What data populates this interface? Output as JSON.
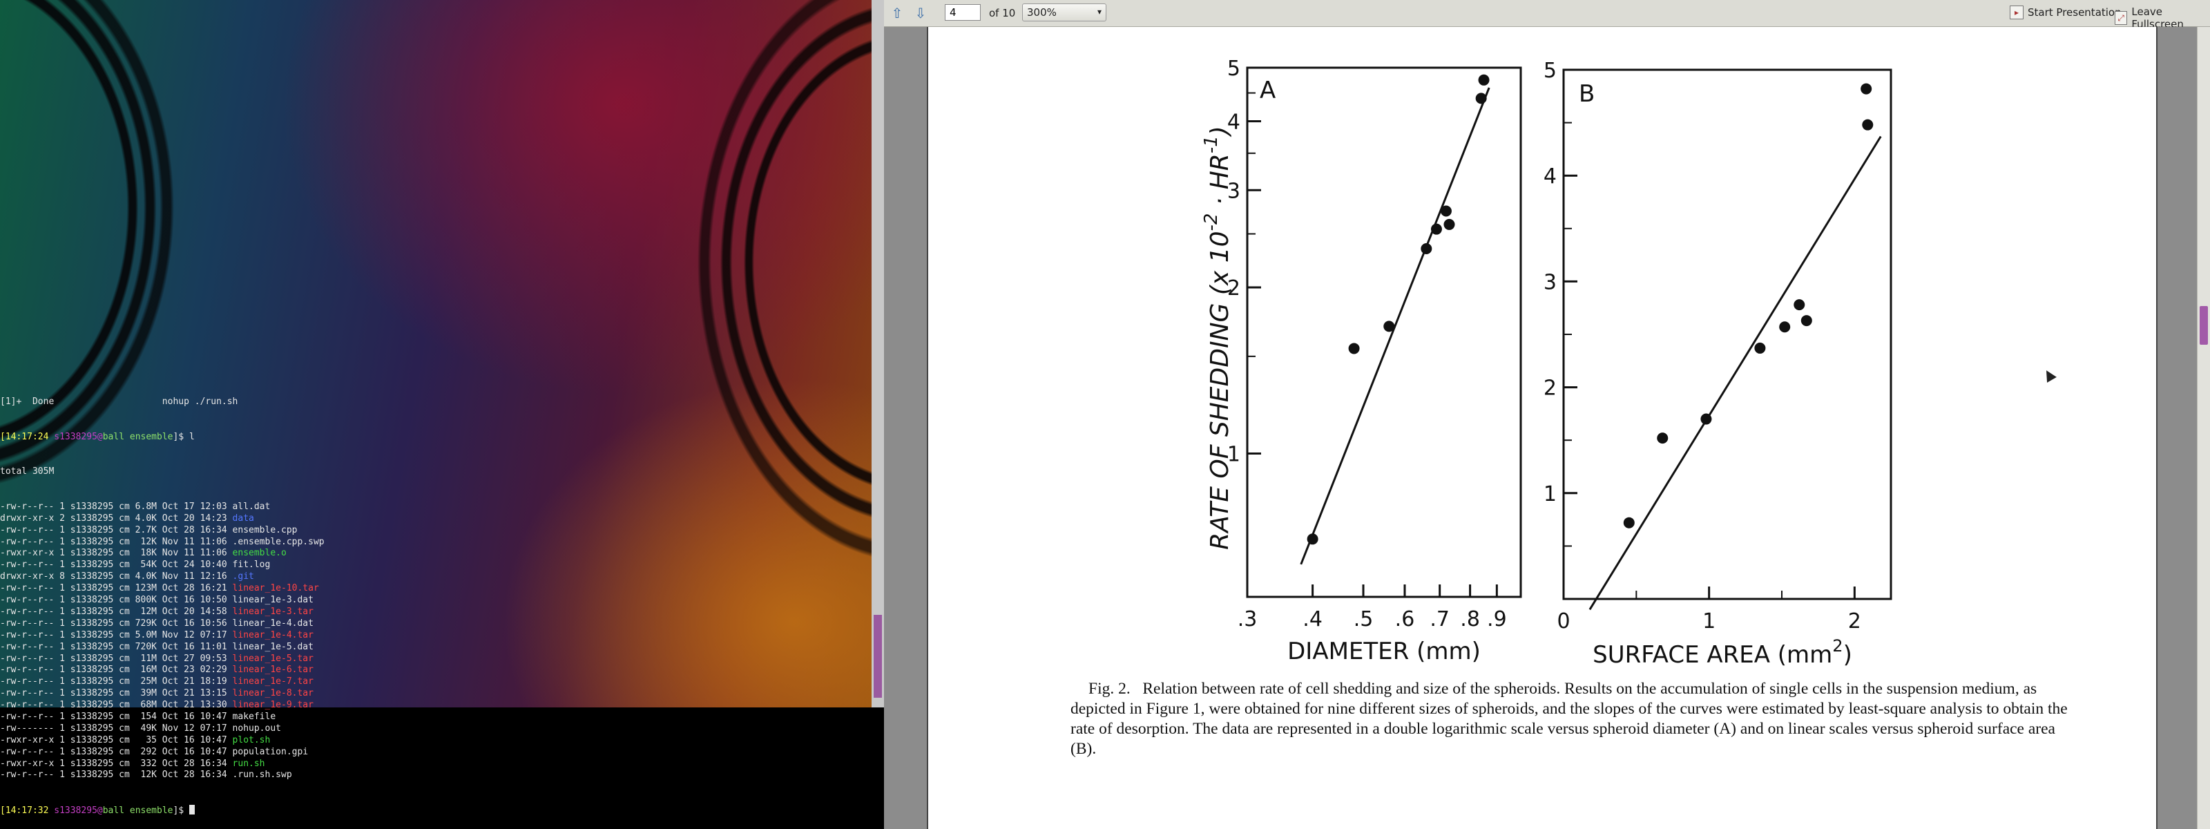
{
  "terminal": {
    "job_line": "[1]+  Done                    nohup ./run.sh",
    "prompt1": {
      "time": "[14:17:24",
      "user": "s1338295",
      "at": "@",
      "host": "ball",
      "dir": "ensemble",
      "tail": "]$ l"
    },
    "total": "total 305M",
    "rows": [
      {
        "meta": "-rw-r--r-- 1 s1338295 cm 6.8M Oct 17 12:03 ",
        "name": "all.dat",
        "type": "file"
      },
      {
        "meta": "drwxr-xr-x 2 s1338295 cm 4.0K Oct 20 14:23 ",
        "name": "data",
        "type": "dir"
      },
      {
        "meta": "-rw-r--r-- 1 s1338295 cm 2.7K Oct 28 16:34 ",
        "name": "ensemble.cpp",
        "type": "file"
      },
      {
        "meta": "-rw-r--r-- 1 s1338295 cm  12K Nov 11 11:06 ",
        "name": ".ensemble.cpp.swp",
        "type": "file"
      },
      {
        "meta": "-rwxr-xr-x 1 s1338295 cm  18K Nov 11 11:06 ",
        "name": "ensemble.o",
        "type": "exec"
      },
      {
        "meta": "-rw-r--r-- 1 s1338295 cm  54K Oct 24 10:40 ",
        "name": "fit.log",
        "type": "file"
      },
      {
        "meta": "drwxr-xr-x 8 s1338295 cm 4.0K Nov 11 12:16 ",
        "name": ".git",
        "type": "dir"
      },
      {
        "meta": "-rw-r--r-- 1 s1338295 cm 123M Oct 28 16:21 ",
        "name": "linear_1e-10.tar",
        "type": "archive"
      },
      {
        "meta": "-rw-r--r-- 1 s1338295 cm 800K Oct 16 10:50 ",
        "name": "linear_1e-3.dat",
        "type": "file"
      },
      {
        "meta": "-rw-r--r-- 1 s1338295 cm  12M Oct 20 14:58 ",
        "name": "linear_1e-3.tar",
        "type": "archive"
      },
      {
        "meta": "-rw-r--r-- 1 s1338295 cm 729K Oct 16 10:56 ",
        "name": "linear_1e-4.dat",
        "type": "file"
      },
      {
        "meta": "-rw-r--r-- 1 s1338295 cm 5.0M Nov 12 07:17 ",
        "name": "linear_1e-4.tar",
        "type": "archive"
      },
      {
        "meta": "-rw-r--r-- 1 s1338295 cm 720K Oct 16 11:01 ",
        "name": "linear_1e-5.dat",
        "type": "file"
      },
      {
        "meta": "-rw-r--r-- 1 s1338295 cm  11M Oct 27 09:53 ",
        "name": "linear_1e-5.tar",
        "type": "archive"
      },
      {
        "meta": "-rw-r--r-- 1 s1338295 cm  16M Oct 23 02:29 ",
        "name": "linear_1e-6.tar",
        "type": "archive"
      },
      {
        "meta": "-rw-r--r-- 1 s1338295 cm  25M Oct 21 18:19 ",
        "name": "linear_1e-7.tar",
        "type": "archive"
      },
      {
        "meta": "-rw-r--r-- 1 s1338295 cm  39M Oct 21 13:15 ",
        "name": "linear_1e-8.tar",
        "type": "archive"
      },
      {
        "meta": "-rw-r--r-- 1 s1338295 cm  68M Oct 21 13:30 ",
        "name": "linear_1e-9.tar",
        "type": "archive"
      },
      {
        "meta": "-rw-r--r-- 1 s1338295 cm  154 Oct 16 10:47 ",
        "name": "makefile",
        "type": "file"
      },
      {
        "meta": "-rw------- 1 s1338295 cm  49K Nov 12 07:17 ",
        "name": "nohup.out",
        "type": "file"
      },
      {
        "meta": "-rwxr-xr-x 1 s1338295 cm   35 Oct 16 10:47 ",
        "name": "plot.sh",
        "type": "exec"
      },
      {
        "meta": "-rw-r--r-- 1 s1338295 cm  292 Oct 16 10:47 ",
        "name": "population.gpi",
        "type": "file"
      },
      {
        "meta": "-rwxr-xr-x 1 s1338295 cm  332 Oct 28 16:34 ",
        "name": "run.sh",
        "type": "exec"
      },
      {
        "meta": "-rw-r--r-- 1 s1338295 cm  12K Oct 28 16:34 ",
        "name": ".run.sh.swp",
        "type": "file"
      }
    ],
    "prompt2": {
      "time": "[14:17:32",
      "user": "s1338295",
      "at": "@",
      "host": "ball",
      "dir": "ensemble",
      "tail": "]$ "
    }
  },
  "viewer": {
    "page_current": "4",
    "page_total_label": "of 10",
    "zoom": "300%",
    "start_presentation": "Start Presentation",
    "leave_fullscreen": "Leave Fullscreen",
    "icons": {
      "prev": "arrow-up-icon",
      "next": "arrow-down-icon",
      "presentation": "presentation-icon",
      "fullscreen": "fullscreen-icon"
    }
  },
  "figure": {
    "ylabel": "RATE OF SHEDDING  (x 10",
    "ylabel_exp": "-2",
    "ylabel_tail": " · HR",
    "ylabel_exp2": "-1",
    "ylabel_close": ")",
    "caption_lead": "Fig. 2.",
    "caption_body": "Relation between rate of cell shedding and size of the spheroids. Results on the accumulation of single cells in the suspension medium, as depicted in Figure 1, were obtained for nine different sizes of spheroids, and the slopes of the curves were estimated by least-square analysis to obtain the rate of desorption. The data are represented in a double logarithmic scale versus spheroid diameter (A) and on linear scales versus spheroid surface area (B)."
  },
  "chart_data": [
    {
      "type": "scatter",
      "panel_label": "A",
      "xlabel": "DIAMETER (mm)",
      "ylabel": "RATE OF SHEDDING (x10^-2 · HR^-1)",
      "xscale": "log",
      "yscale": "log",
      "xlim": [
        0.3,
        1.0
      ],
      "ylim": [
        0.55,
        5.0
      ],
      "x_ticks": [
        ".3",
        ".4",
        ".5",
        ".6",
        ".7",
        ".8",
        ".9"
      ],
      "y_ticks": [
        "1",
        "2",
        "3",
        "4",
        "5"
      ],
      "points": [
        {
          "x": 0.4,
          "y": 0.7
        },
        {
          "x": 0.48,
          "y": 1.55
        },
        {
          "x": 0.56,
          "y": 1.7
        },
        {
          "x": 0.66,
          "y": 2.35
        },
        {
          "x": 0.69,
          "y": 2.55
        },
        {
          "x": 0.72,
          "y": 2.75
        },
        {
          "x": 0.73,
          "y": 2.6
        },
        {
          "x": 0.84,
          "y": 4.4
        },
        {
          "x": 0.85,
          "y": 4.75
        }
      ],
      "fit_line": [
        {
          "x": 0.38,
          "y": 0.63
        },
        {
          "x": 0.87,
          "y": 4.6
        }
      ],
      "grid": false
    },
    {
      "type": "scatter",
      "panel_label": "B",
      "xlabel": "SURFACE AREA (mm",
      "xlabel_exp": "2",
      "xlabel_close": ")",
      "xscale": "linear",
      "yscale": "linear",
      "xlim": [
        0,
        2.25
      ],
      "ylim": [
        0,
        5.0
      ],
      "x_ticks": [
        "0",
        "1",
        "2"
      ],
      "y_ticks": [
        "1",
        "2",
        "3",
        "4",
        "5"
      ],
      "points": [
        {
          "x": 0.45,
          "y": 0.72
        },
        {
          "x": 0.68,
          "y": 1.52
        },
        {
          "x": 0.98,
          "y": 1.7
        },
        {
          "x": 1.35,
          "y": 2.37
        },
        {
          "x": 1.52,
          "y": 2.57
        },
        {
          "x": 1.62,
          "y": 2.78
        },
        {
          "x": 1.67,
          "y": 2.63
        },
        {
          "x": 2.09,
          "y": 4.48
        },
        {
          "x": 2.08,
          "y": 4.82
        }
      ],
      "fit_line": [
        {
          "x": 0.18,
          "y": -0.1
        },
        {
          "x": 2.18,
          "y": 4.37
        }
      ],
      "grid": false
    }
  ]
}
